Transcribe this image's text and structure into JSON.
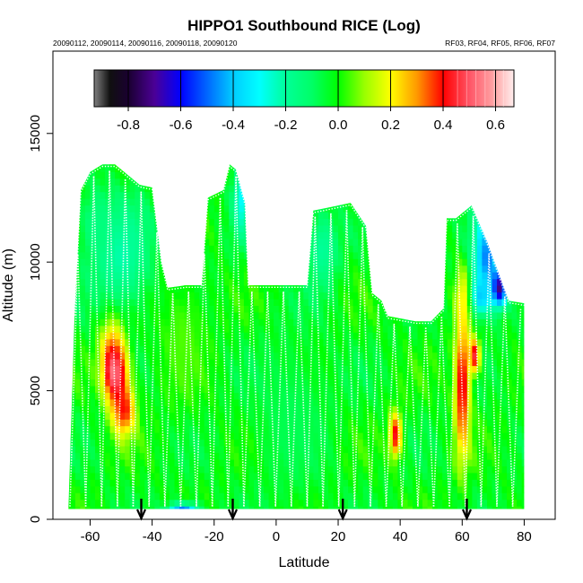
{
  "chart_data": {
    "type": "heatmap",
    "title": "HIPPO1 Southbound RICE (Log)",
    "subtitle_left": "20090112, 20090114, 20090116, 20090118, 20090120",
    "subtitle_right": "RF03, RF04, RF05, RF06, RF07",
    "xlabel": "Latitude",
    "ylabel": "Altitude (m)",
    "xlim": [
      -72,
      90
    ],
    "ylim": [
      0,
      18200
    ],
    "x_ticks": [
      -60,
      -40,
      -20,
      0,
      20,
      40,
      60,
      80
    ],
    "x_tick_labels": [
      "-60",
      "-40",
      "-20",
      "0",
      "20",
      "40",
      "60",
      "80"
    ],
    "y_ticks": [
      0,
      5000,
      10000,
      15000
    ],
    "y_tick_labels": [
      "0",
      "5000",
      "10000",
      "15000"
    ],
    "colorbar": {
      "range": [
        -0.93,
        0.67
      ],
      "ticks": [
        -0.8,
        -0.6,
        -0.4,
        -0.2,
        0.0,
        0.2,
        0.4,
        0.6
      ],
      "tick_labels": [
        "-0.8",
        "-0.6",
        "-0.4",
        "-0.2",
        "0.0",
        "0.2",
        "0.4",
        "0.6"
      ],
      "gradient_stops": [
        {
          "v": -0.93,
          "color": "#808080"
        },
        {
          "v": -0.87,
          "color": "#101010"
        },
        {
          "v": -0.8,
          "color": "#1a0030"
        },
        {
          "v": -0.7,
          "color": "#4b0096"
        },
        {
          "v": -0.6,
          "color": "#0000ff"
        },
        {
          "v": -0.5,
          "color": "#0066ff"
        },
        {
          "v": -0.4,
          "color": "#00ccff"
        },
        {
          "v": -0.3,
          "color": "#00ffff"
        },
        {
          "v": -0.2,
          "color": "#00ff99"
        },
        {
          "v": -0.1,
          "color": "#00ff66"
        },
        {
          "v": 0.0,
          "color": "#00ff00"
        },
        {
          "v": 0.1,
          "color": "#99ff00"
        },
        {
          "v": 0.2,
          "color": "#ffff00"
        },
        {
          "v": 0.3,
          "color": "#ff9900"
        },
        {
          "v": 0.4,
          "color": "#ff0000"
        },
        {
          "v": 0.5,
          "color": "#ff5566"
        },
        {
          "v": 0.6,
          "color": "#ffaaaa"
        },
        {
          "v": 0.67,
          "color": "#ffeeee"
        }
      ]
    },
    "flight_markers_latitude": [
      -43.5,
      -14,
      21.5,
      61.5
    ],
    "flight_envelope": [
      [
        -65,
        8000
      ],
      [
        -63,
        12800
      ],
      [
        -60,
        13500
      ],
      [
        -56,
        13800
      ],
      [
        -52,
        13800
      ],
      [
        -50,
        13600
      ],
      [
        -44,
        13000
      ],
      [
        -40,
        12900
      ],
      [
        -37,
        10000
      ],
      [
        -35,
        9000
      ],
      [
        -29,
        9100
      ],
      [
        -24,
        9100
      ],
      [
        -22,
        12500
      ],
      [
        -17,
        12800
      ],
      [
        -15,
        13800
      ],
      [
        -13,
        13600
      ],
      [
        -10,
        12300
      ],
      [
        -9,
        9100
      ],
      [
        -2,
        9100
      ],
      [
        5,
        9100
      ],
      [
        10,
        9100
      ],
      [
        12,
        12000
      ],
      [
        16,
        12100
      ],
      [
        24,
        12300
      ],
      [
        29,
        11400
      ],
      [
        31,
        8800
      ],
      [
        34,
        8500
      ],
      [
        36,
        7900
      ],
      [
        45,
        7700
      ],
      [
        50,
        7700
      ],
      [
        54,
        8200
      ],
      [
        55,
        11700
      ],
      [
        58,
        11700
      ],
      [
        63,
        12200
      ],
      [
        68,
        10800
      ],
      [
        75,
        8500
      ],
      [
        80,
        8400
      ],
      [
        80,
        400
      ],
      [
        -67,
        400
      ]
    ],
    "features": [
      {
        "lon": -53,
        "alt": 6500,
        "sx": 4,
        "sy": 1500,
        "val": 0.35
      },
      {
        "lon": -51,
        "alt": 5500,
        "sx": 3.5,
        "sy": 1400,
        "val": 0.42
      },
      {
        "lon": -49,
        "alt": 4300,
        "sx": 3.5,
        "sy": 1000,
        "val": 0.4
      },
      {
        "lon": -52.5,
        "alt": 5800,
        "sx": 2.5,
        "sy": 800,
        "val": 0.55
      },
      {
        "lon": -50,
        "alt": 10300,
        "sx": 10,
        "sy": 2200,
        "val": -0.22
      },
      {
        "lon": -58,
        "alt": 11500,
        "sx": 5,
        "sy": 1200,
        "val": -0.15
      },
      {
        "lon": 38.5,
        "alt": 3300,
        "sx": 2,
        "sy": 900,
        "val": 0.42
      },
      {
        "lon": 60,
        "alt": 5200,
        "sx": 2.5,
        "sy": 2800,
        "val": 0.44
      },
      {
        "lon": 60.5,
        "alt": 8600,
        "sx": 2.2,
        "sy": 1200,
        "val": 0.25
      },
      {
        "lon": 64,
        "alt": 6400,
        "sx": 1.8,
        "sy": 700,
        "val": 0.45
      },
      {
        "lon": 68,
        "alt": 10200,
        "sx": 4.5,
        "sy": 1700,
        "val": -0.48
      },
      {
        "lon": 72,
        "alt": 9000,
        "sx": 2.5,
        "sy": 700,
        "val": -0.72
      },
      {
        "lon": 66,
        "alt": 8700,
        "sx": 3,
        "sy": 700,
        "val": -0.4
      },
      {
        "lon": -30,
        "alt": 200,
        "sx": 5,
        "sy": 400,
        "val": -0.6
      },
      {
        "lon": -11,
        "alt": 12500,
        "sx": 3,
        "sy": 1500,
        "val": -0.3
      },
      {
        "lon": 15,
        "alt": 10500,
        "sx": 5,
        "sy": 1500,
        "val": -0.2
      },
      {
        "lon": -30,
        "alt": 7000,
        "sx": 8,
        "sy": 2500,
        "val": 0.05
      },
      {
        "lon": 5,
        "alt": 4000,
        "sx": 12,
        "sy": 3000,
        "val": -0.08
      }
    ]
  }
}
